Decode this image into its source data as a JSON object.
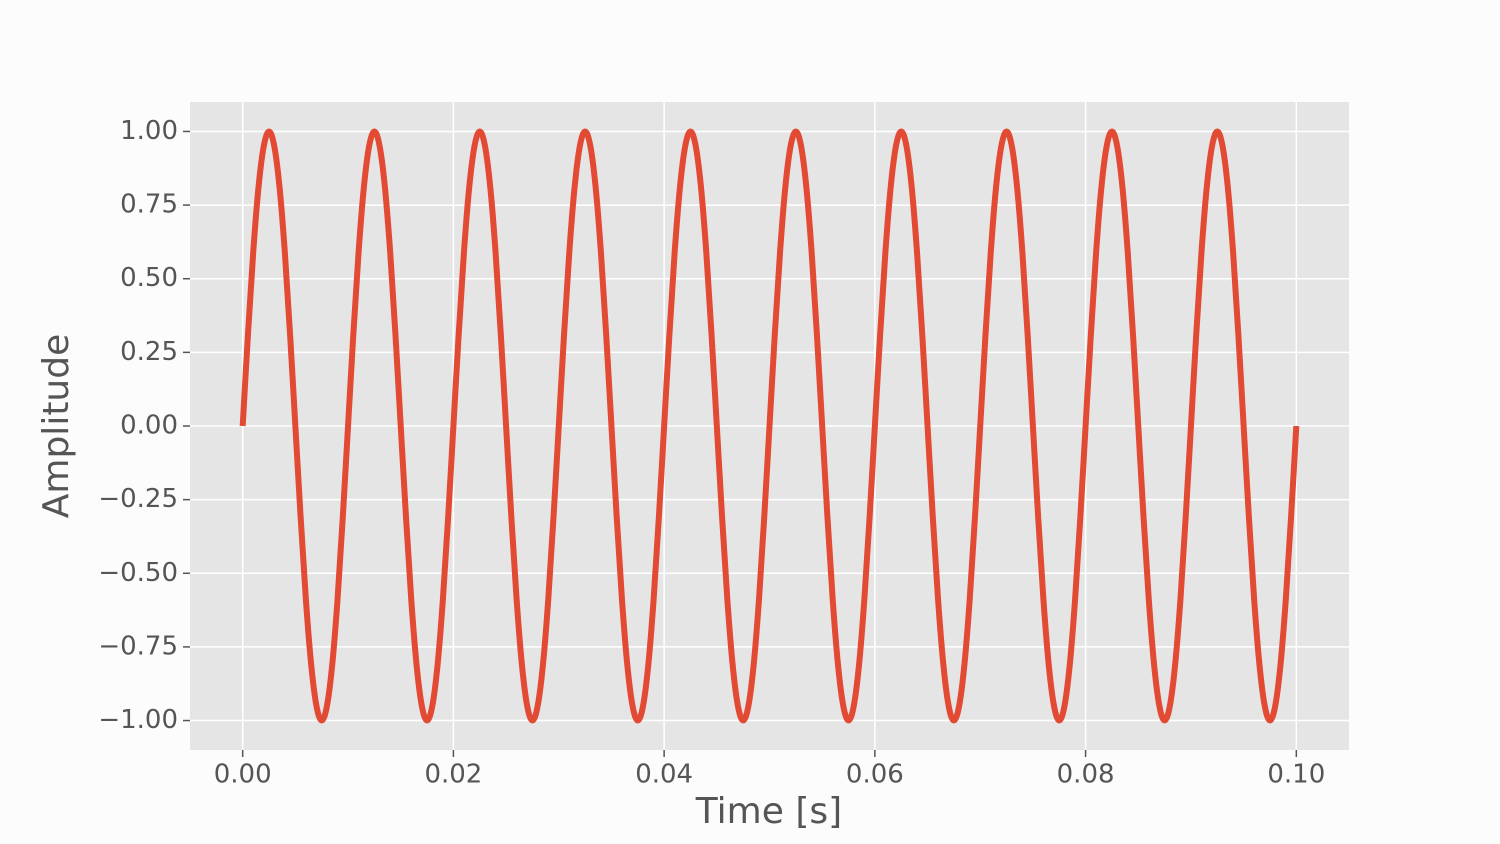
{
  "chart_data": {
    "type": "line",
    "xlabel": "Time [s]",
    "ylabel": "Amplitude",
    "color": "#e24a33",
    "grid": true,
    "xlim": [
      -0.005,
      0.105
    ],
    "ylim": [
      -1.1,
      1.1
    ],
    "xticks": [
      {
        "value": 0,
        "label": "0.00"
      },
      {
        "value": 0.02,
        "label": "0.02"
      },
      {
        "value": 0.04,
        "label": "0.04"
      },
      {
        "value": 0.06,
        "label": "0.06"
      },
      {
        "value": 0.08,
        "label": "0.08"
      },
      {
        "value": 0.1,
        "label": "0.10"
      }
    ],
    "yticks": [
      {
        "value": -1,
        "label": "−1.00"
      },
      {
        "value": -0.75,
        "label": "−0.75"
      },
      {
        "value": -0.5,
        "label": "−0.50"
      },
      {
        "value": -0.25,
        "label": "−0.25"
      },
      {
        "value": 0,
        "label": "0.00"
      },
      {
        "value": 0.25,
        "label": "0.25"
      },
      {
        "value": 0.5,
        "label": "0.50"
      },
      {
        "value": 0.75,
        "label": "0.75"
      },
      {
        "value": 1,
        "label": "1.00"
      }
    ],
    "x": [
      0,
      0.0005,
      0.001,
      0.0015,
      0.002,
      0.0025,
      0.003,
      0.0035,
      0.004,
      0.0045,
      0.005,
      0.0055,
      0.006,
      0.0065,
      0.007,
      0.0075,
      0.008,
      0.0085,
      0.009,
      0.0095,
      0.01,
      0.0105,
      0.011,
      0.0115,
      0.012,
      0.0125,
      0.013,
      0.0135,
      0.014,
      0.0145,
      0.015,
      0.0155,
      0.016,
      0.0165,
      0.017,
      0.0175,
      0.018,
      0.0185,
      0.019,
      0.0195,
      0.02,
      0.0205,
      0.021,
      0.0215,
      0.022,
      0.0225,
      0.023,
      0.0235,
      0.024,
      0.0245,
      0.025,
      0.0255,
      0.026,
      0.0265,
      0.027,
      0.0275,
      0.028,
      0.0285,
      0.029,
      0.0295,
      0.03,
      0.0305,
      0.031,
      0.0315,
      0.032,
      0.0325,
      0.033,
      0.0335,
      0.034,
      0.0345,
      0.035,
      0.0355,
      0.036,
      0.0365,
      0.037,
      0.0375,
      0.038,
      0.0385,
      0.039,
      0.0395,
      0.04,
      0.0405,
      0.041,
      0.0415,
      0.042,
      0.0425,
      0.043,
      0.0435,
      0.044,
      0.0445,
      0.045,
      0.0455,
      0.046,
      0.0465,
      0.047,
      0.0475,
      0.048,
      0.0485,
      0.049,
      0.0495,
      0.05,
      0.0505,
      0.051,
      0.0515,
      0.052,
      0.0525,
      0.053,
      0.0535,
      0.054,
      0.0545,
      0.055,
      0.0555,
      0.056,
      0.0565,
      0.057,
      0.0575,
      0.058,
      0.0585,
      0.059,
      0.0595,
      0.06,
      0.0605,
      0.061,
      0.0615,
      0.062,
      0.0625,
      0.063,
      0.0635,
      0.064,
      0.0645,
      0.065,
      0.0655,
      0.066,
      0.0665,
      0.067,
      0.0675,
      0.068,
      0.0685,
      0.069,
      0.0695,
      0.07,
      0.0705,
      0.071,
      0.0715,
      0.072,
      0.0725,
      0.073,
      0.0735,
      0.074,
      0.0745,
      0.075,
      0.0755,
      0.076,
      0.0765,
      0.077,
      0.0775,
      0.078,
      0.0785,
      0.079,
      0.0795,
      0.08,
      0.0805,
      0.081,
      0.0815,
      0.082,
      0.0825,
      0.083,
      0.0835,
      0.084,
      0.0845,
      0.085,
      0.0855,
      0.086,
      0.0865,
      0.087,
      0.0875,
      0.088,
      0.0885,
      0.089,
      0.0895,
      0.09,
      0.0905,
      0.091,
      0.0915,
      0.092,
      0.0925,
      0.093,
      0.0935,
      0.094,
      0.0945,
      0.095,
      0.0955,
      0.096,
      0.0965,
      0.097,
      0.0975,
      0.098,
      0.0985,
      0.099,
      0.0995,
      0.1
    ],
    "values": [
      0,
      0.31,
      0.59,
      0.81,
      0.95,
      1,
      0.95,
      0.81,
      0.59,
      0.31,
      0,
      -0.31,
      -0.59,
      -0.81,
      -0.95,
      -1,
      -0.95,
      -0.81,
      -0.59,
      -0.31,
      0,
      0.31,
      0.59,
      0.81,
      0.95,
      1,
      0.95,
      0.81,
      0.59,
      0.31,
      0,
      -0.31,
      -0.59,
      -0.81,
      -0.95,
      -1,
      -0.95,
      -0.81,
      -0.59,
      -0.31,
      0,
      0.31,
      0.59,
      0.81,
      0.95,
      1,
      0.95,
      0.81,
      0.59,
      0.31,
      0,
      -0.31,
      -0.59,
      -0.81,
      -0.95,
      -1,
      -0.95,
      -0.81,
      -0.59,
      -0.31,
      0,
      0.31,
      0.59,
      0.81,
      0.95,
      1,
      0.95,
      0.81,
      0.59,
      0.31,
      0,
      -0.31,
      -0.59,
      -0.81,
      -0.95,
      -1,
      -0.95,
      -0.81,
      -0.59,
      -0.31,
      0,
      0.31,
      0.59,
      0.81,
      0.95,
      1,
      0.95,
      0.81,
      0.59,
      0.31,
      0,
      -0.31,
      -0.59,
      -0.81,
      -0.95,
      -1,
      -0.95,
      -0.81,
      -0.59,
      -0.31,
      0,
      0.31,
      0.59,
      0.81,
      0.95,
      1,
      0.95,
      0.81,
      0.59,
      0.31,
      0,
      -0.31,
      -0.59,
      -0.81,
      -0.95,
      -1,
      -0.95,
      -0.81,
      -0.59,
      -0.31,
      0,
      0.31,
      0.59,
      0.81,
      0.95,
      1,
      0.95,
      0.81,
      0.59,
      0.31,
      0,
      -0.31,
      -0.59,
      -0.81,
      -0.95,
      -1,
      -0.95,
      -0.81,
      -0.59,
      -0.31,
      0,
      0.31,
      0.59,
      0.81,
      0.95,
      1,
      0.95,
      0.81,
      0.59,
      0.31,
      0,
      -0.31,
      -0.59,
      -0.81,
      -0.95,
      -1,
      -0.95,
      -0.81,
      -0.59,
      -0.31,
      0,
      0.31,
      0.59,
      0.81,
      0.95,
      1,
      0.95,
      0.81,
      0.59,
      0.31,
      0,
      -0.31,
      -0.59,
      -0.81,
      -0.95,
      -1,
      -0.95,
      -0.81,
      -0.59,
      -0.31,
      0,
      0.31,
      0.59,
      0.81,
      0.95,
      1,
      0.95,
      0.81,
      0.59,
      0.31,
      0,
      -0.31,
      -0.59,
      -0.81,
      -0.95,
      -1,
      -0.95,
      -0.81,
      -0.59,
      -0.31,
      0
    ]
  }
}
